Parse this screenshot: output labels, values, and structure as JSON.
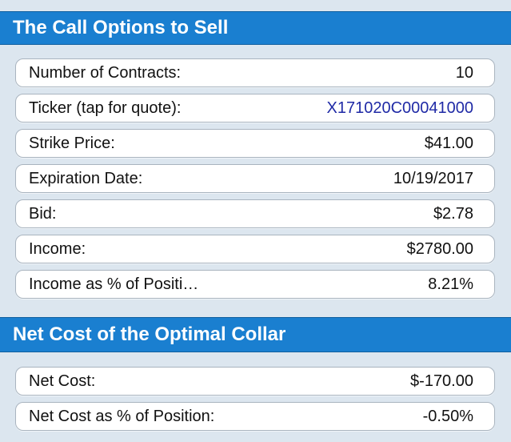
{
  "sections": [
    {
      "title": "The Call Options to Sell",
      "rows": [
        {
          "label": "Number of Contracts:",
          "value": "10"
        },
        {
          "label": "Ticker (tap for quote):",
          "value": "X171020C00041000"
        },
        {
          "label": "Strike Price:",
          "value": "$41.00"
        },
        {
          "label": "Expiration Date:",
          "value": "10/19/2017"
        },
        {
          "label": "Bid:",
          "value": "$2.78"
        },
        {
          "label": "Income:",
          "value": "$2780.00"
        },
        {
          "label": "Income as % of Positi…",
          "value": "8.21%"
        }
      ]
    },
    {
      "title": "Net Cost of the Optimal Collar",
      "rows": [
        {
          "label": "Net Cost:",
          "value": "$-170.00"
        },
        {
          "label": "Net Cost as % of Position:",
          "value": "-0.50%"
        }
      ]
    }
  ],
  "colors": {
    "header_bg": "#1a7fd0",
    "page_bg": "#dce6ef",
    "link_text": "#1f2aa6"
  }
}
